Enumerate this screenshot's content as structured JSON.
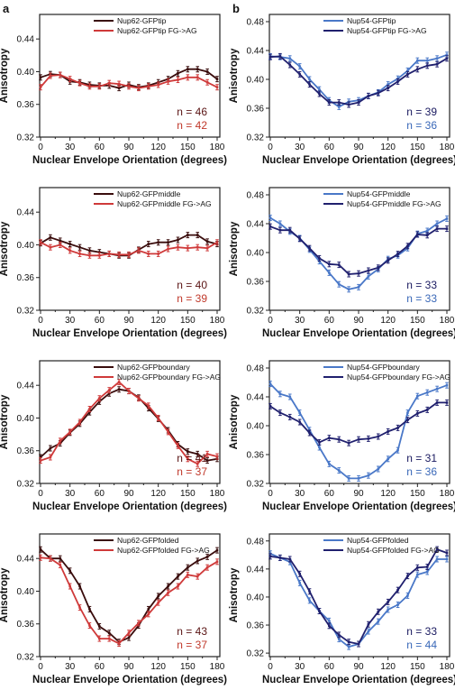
{
  "panel_letters": [
    "a",
    "b"
  ],
  "colors": {
    "nup62_black": "#3a0d0d",
    "nup62_red": "#cf3a3a",
    "nup54_navy": "#20206e",
    "nup54_blue": "#4a78c8",
    "n_dark_red": "#5a1414",
    "n_red": "#c0392b",
    "n_navy": "#1a1a60",
    "n_blue": "#3a68b8"
  },
  "chart_data": [
    {
      "type": "line",
      "xlabel": "Nuclear Envelope Orientation (degrees)",
      "ylabel": "Anisotropy",
      "x": [
        0,
        10,
        20,
        30,
        40,
        50,
        60,
        70,
        80,
        90,
        100,
        110,
        120,
        130,
        140,
        150,
        160,
        170,
        180
      ],
      "xticks": [
        0,
        30,
        60,
        90,
        120,
        150,
        180
      ],
      "yticks": [
        "0.32",
        "0.36",
        "0.40",
        "0.44"
      ],
      "ylim": [
        0.32,
        0.47
      ],
      "series": [
        {
          "name": "Nup62-GFPtip",
          "color": "nup62_black",
          "values": [
            0.393,
            0.397,
            0.396,
            0.388,
            0.387,
            0.384,
            0.383,
            0.383,
            0.38,
            0.384,
            0.381,
            0.383,
            0.387,
            0.391,
            0.398,
            0.403,
            0.403,
            0.4,
            0.391
          ]
        },
        {
          "name": "Nup62-GFPtip FG->AG",
          "color": "nup62_red",
          "values": [
            0.381,
            0.395,
            0.396,
            0.391,
            0.386,
            0.382,
            0.382,
            0.386,
            0.385,
            0.382,
            0.38,
            0.382,
            0.384,
            0.388,
            0.39,
            0.393,
            0.393,
            0.387,
            0.381
          ]
        }
      ],
      "n_labels": [
        "n = 46",
        "n = 42"
      ],
      "n_colors": [
        "n_dark_red",
        "n_red"
      ]
    },
    {
      "type": "line",
      "xlabel": "Nuclear Envelope Orientation (degrees)",
      "ylabel": "Anisotropy",
      "x": [
        0,
        10,
        20,
        30,
        40,
        50,
        60,
        70,
        80,
        90,
        100,
        110,
        120,
        130,
        140,
        150,
        160,
        170,
        180
      ],
      "xticks": [
        0,
        30,
        60,
        90,
        120,
        150,
        180
      ],
      "yticks": [
        "0.32",
        "0.36",
        "0.40",
        "0.44",
        "0.48"
      ],
      "ylim": [
        0.32,
        0.49
      ],
      "series": [
        {
          "name": "Nup54-GFPtip",
          "color": "nup54_blue",
          "values": [
            0.432,
            0.431,
            0.429,
            0.418,
            0.4,
            0.386,
            0.371,
            0.362,
            0.369,
            0.371,
            0.377,
            0.382,
            0.393,
            0.401,
            0.412,
            0.426,
            0.426,
            0.429,
            0.434
          ]
        },
        {
          "name": "Nup54-GFPtip FG->AG",
          "color": "nup54_navy",
          "values": [
            0.431,
            0.432,
            0.42,
            0.407,
            0.393,
            0.38,
            0.368,
            0.368,
            0.365,
            0.368,
            0.377,
            0.381,
            0.388,
            0.397,
            0.407,
            0.414,
            0.419,
            0.421,
            0.429
          ]
        }
      ],
      "n_labels": [
        "n = 39",
        "n = 36"
      ],
      "n_colors": [
        "n_navy",
        "n_blue"
      ]
    },
    {
      "type": "line",
      "xlabel": "Nuclear Envelope Orientation (degrees)",
      "ylabel": "Anisotropy",
      "x": [
        0,
        10,
        20,
        30,
        40,
        50,
        60,
        70,
        80,
        90,
        100,
        110,
        120,
        130,
        140,
        150,
        160,
        170,
        180
      ],
      "xticks": [
        0,
        30,
        60,
        90,
        120,
        150,
        180
      ],
      "yticks": [
        "0.32",
        "0.36",
        "0.40",
        "0.44"
      ],
      "ylim": [
        0.32,
        0.47
      ],
      "series": [
        {
          "name": "Nup62-GFPmiddle",
          "color": "nup62_black",
          "values": [
            0.402,
            0.409,
            0.405,
            0.401,
            0.397,
            0.393,
            0.391,
            0.389,
            0.387,
            0.387,
            0.394,
            0.401,
            0.403,
            0.403,
            0.406,
            0.412,
            0.412,
            0.404,
            0.401
          ]
        },
        {
          "name": "Nup62-GFPmiddle FG->AG",
          "color": "nup62_red",
          "values": [
            0.403,
            0.397,
            0.4,
            0.393,
            0.389,
            0.387,
            0.387,
            0.389,
            0.388,
            0.388,
            0.393,
            0.389,
            0.389,
            0.395,
            0.397,
            0.396,
            0.397,
            0.396,
            0.403
          ]
        }
      ],
      "n_labels": [
        "n = 40",
        "n = 39"
      ],
      "n_colors": [
        "n_dark_red",
        "n_red"
      ]
    },
    {
      "type": "line",
      "xlabel": "Nuclear Envelope Orientation (degrees)",
      "ylabel": "Anisotropy",
      "x": [
        0,
        10,
        20,
        30,
        40,
        50,
        60,
        70,
        80,
        90,
        100,
        110,
        120,
        130,
        140,
        150,
        160,
        170,
        180
      ],
      "xticks": [
        0,
        30,
        60,
        90,
        120,
        150,
        180
      ],
      "yticks": [
        "0.32",
        "0.36",
        "0.40",
        "0.44",
        "0.48"
      ],
      "ylim": [
        0.32,
        0.49
      ],
      "series": [
        {
          "name": "Nup54-GFPmiddle",
          "color": "nup54_blue",
          "values": [
            0.448,
            0.44,
            0.429,
            0.42,
            0.404,
            0.388,
            0.372,
            0.356,
            0.349,
            0.352,
            0.367,
            0.377,
            0.391,
            0.396,
            0.406,
            0.426,
            0.43,
            0.44,
            0.447
          ]
        },
        {
          "name": "Nup54-GFPmiddle FG->AG",
          "color": "nup54_navy",
          "values": [
            0.436,
            0.431,
            0.431,
            0.419,
            0.406,
            0.392,
            0.384,
            0.383,
            0.37,
            0.371,
            0.375,
            0.379,
            0.389,
            0.398,
            0.409,
            0.425,
            0.424,
            0.433,
            0.433
          ]
        }
      ],
      "n_labels": [
        "n = 33",
        "n = 33"
      ],
      "n_colors": [
        "n_navy",
        "n_blue"
      ]
    },
    {
      "type": "line",
      "xlabel": "Nuclear Envelope Orientation (degrees)",
      "ylabel": "Anisotropy",
      "x": [
        0,
        10,
        20,
        30,
        40,
        50,
        60,
        70,
        80,
        90,
        100,
        110,
        120,
        130,
        140,
        150,
        160,
        170,
        180
      ],
      "xticks": [
        0,
        30,
        60,
        90,
        120,
        150,
        180
      ],
      "yticks": [
        "0.32",
        "0.36",
        "0.40",
        "0.44"
      ],
      "ylim": [
        0.32,
        0.47
      ],
      "series": [
        {
          "name": "Nup62-GFPboundary",
          "color": "nup62_black",
          "values": [
            0.352,
            0.363,
            0.369,
            0.382,
            0.393,
            0.407,
            0.42,
            0.43,
            0.435,
            0.433,
            0.425,
            0.412,
            0.399,
            0.385,
            0.368,
            0.359,
            0.356,
            0.348,
            0.35
          ]
        },
        {
          "name": "Nup62-GFPboundary FG->AG",
          "color": "nup62_red",
          "values": [
            0.348,
            0.352,
            0.372,
            0.383,
            0.395,
            0.411,
            0.424,
            0.434,
            0.444,
            0.433,
            0.424,
            0.415,
            0.4,
            0.383,
            0.366,
            0.35,
            0.344,
            0.356,
            0.353
          ]
        }
      ],
      "n_labels": [
        "n = 41",
        "n = 37"
      ],
      "n_colors": [
        "n_dark_red",
        "n_red"
      ]
    },
    {
      "type": "line",
      "xlabel": "Nuclear Envelope Orientation (degrees)",
      "ylabel": "Anisotropy",
      "x": [
        0,
        10,
        20,
        30,
        40,
        50,
        60,
        70,
        80,
        90,
        100,
        110,
        120,
        130,
        140,
        150,
        160,
        170,
        180
      ],
      "xticks": [
        0,
        30,
        60,
        90,
        120,
        150,
        180
      ],
      "yticks": [
        "0.32",
        "0.36",
        "0.40",
        "0.44",
        "0.48"
      ],
      "ylim": [
        0.32,
        0.49
      ],
      "series": [
        {
          "name": "Nup54-GFPboundary",
          "color": "nup54_blue",
          "values": [
            0.458,
            0.444,
            0.44,
            0.418,
            0.394,
            0.37,
            0.347,
            0.338,
            0.327,
            0.327,
            0.331,
            0.34,
            0.354,
            0.366,
            0.418,
            0.441,
            0.446,
            0.451,
            0.456
          ]
        },
        {
          "name": "Nup54-GFPboundary FG->AG",
          "color": "nup54_navy",
          "values": [
            0.427,
            0.418,
            0.412,
            0.405,
            0.39,
            0.377,
            0.383,
            0.381,
            0.376,
            0.381,
            0.382,
            0.385,
            0.392,
            0.397,
            0.408,
            0.417,
            0.422,
            0.432,
            0.432
          ]
        }
      ],
      "n_labels": [
        "n = 31",
        "n = 36"
      ],
      "n_colors": [
        "n_navy",
        "n_blue"
      ]
    },
    {
      "type": "line",
      "xlabel": "Nuclear Envelope Orientation (degrees)",
      "ylabel": "Anisotropy",
      "x": [
        0,
        10,
        20,
        30,
        40,
        50,
        60,
        70,
        80,
        90,
        100,
        110,
        120,
        130,
        140,
        150,
        160,
        170,
        180
      ],
      "xticks": [
        0,
        30,
        60,
        90,
        120,
        150,
        180
      ],
      "yticks": [
        "0.32",
        "0.36",
        "0.40",
        "0.44"
      ],
      "ylim": [
        0.32,
        0.47
      ],
      "series": [
        {
          "name": "Nup62-GFPfolded",
          "color": "nup62_black",
          "values": [
            0.451,
            0.44,
            0.44,
            0.425,
            0.406,
            0.378,
            0.357,
            0.349,
            0.338,
            0.343,
            0.358,
            0.378,
            0.394,
            0.406,
            0.418,
            0.429,
            0.437,
            0.442,
            0.45
          ]
        },
        {
          "name": "Nup62-GFPfolded FG->AG",
          "color": "nup62_red",
          "values": [
            0.441,
            0.44,
            0.432,
            0.406,
            0.38,
            0.358,
            0.342,
            0.342,
            0.336,
            0.349,
            0.361,
            0.372,
            0.386,
            0.398,
            0.406,
            0.42,
            0.418,
            0.429,
            0.436
          ]
        }
      ],
      "n_labels": [
        "n = 43",
        "n = 37"
      ],
      "n_colors": [
        "n_dark_red",
        "n_red"
      ]
    },
    {
      "type": "line",
      "xlabel": "Nuclear Envelope Orientation (degrees)",
      "ylabel": "Anisotropy",
      "x": [
        0,
        10,
        20,
        30,
        40,
        50,
        60,
        70,
        80,
        90,
        100,
        110,
        120,
        130,
        140,
        150,
        160,
        170,
        180
      ],
      "xticks": [
        0,
        30,
        60,
        90,
        120,
        150,
        180
      ],
      "yticks": [
        "0.32",
        "0.36",
        "0.40",
        "0.44",
        "0.48"
      ],
      "ylim": [
        0.315,
        0.49
      ],
      "series": [
        {
          "name": "Nup54-GFPfolded",
          "color": "nup54_blue",
          "values": [
            0.462,
            0.456,
            0.45,
            0.42,
            0.395,
            0.38,
            0.366,
            0.34,
            0.329,
            0.333,
            0.351,
            0.365,
            0.382,
            0.389,
            0.402,
            0.432,
            0.436,
            0.454,
            0.454
          ]
        },
        {
          "name": "Nup54-GFPfolded FG->AG",
          "color": "nup54_navy",
          "values": [
            0.458,
            0.456,
            0.454,
            0.433,
            0.408,
            0.38,
            0.359,
            0.346,
            0.336,
            0.333,
            0.361,
            0.379,
            0.393,
            0.41,
            0.43,
            0.442,
            0.443,
            0.468,
            0.463
          ]
        }
      ],
      "n_labels": [
        "n = 33",
        "n = 44"
      ],
      "n_colors": [
        "n_navy",
        "n_blue"
      ]
    }
  ]
}
